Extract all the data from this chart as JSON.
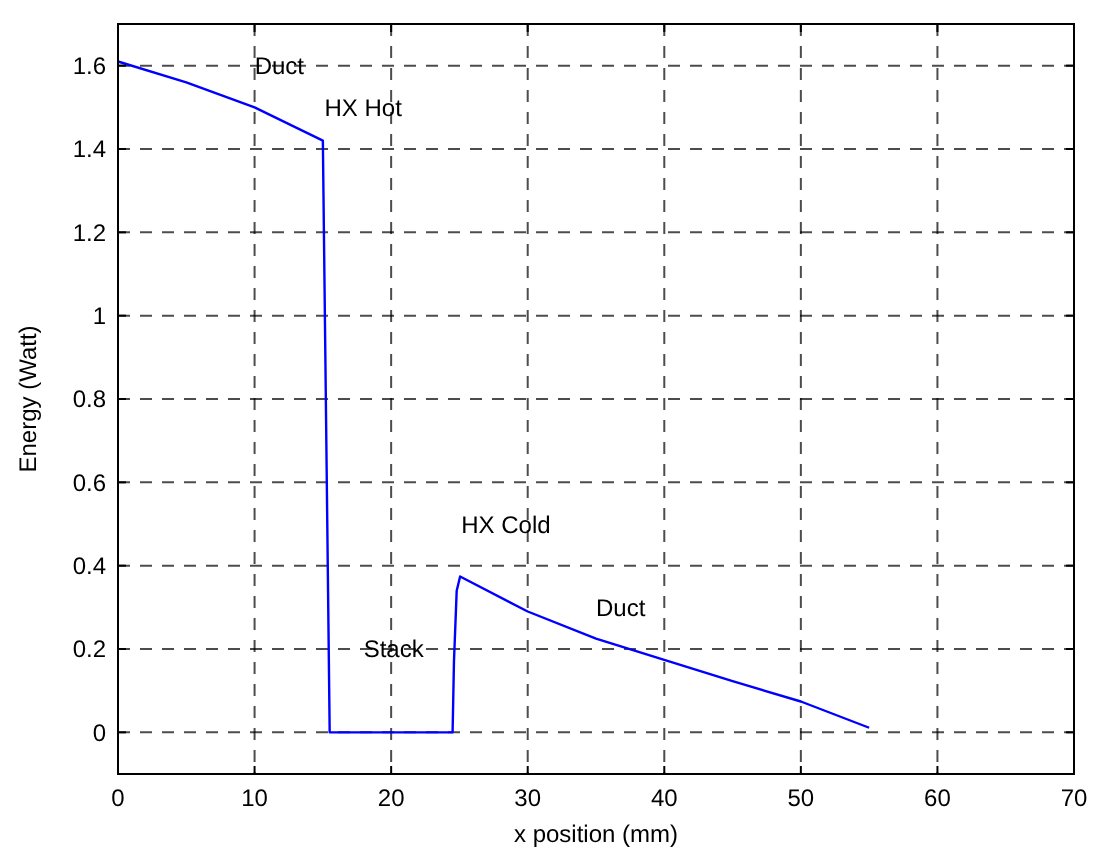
{
  "chart_data": {
    "type": "line",
    "xlabel": "x position (mm)",
    "ylabel": "Energy (Watt)",
    "x": [
      0,
      5,
      10,
      15,
      15.5,
      24.5,
      24.6,
      24.8,
      25.05,
      30,
      35,
      40,
      45,
      50,
      55
    ],
    "series": [
      {
        "color": "#0000ff",
        "values": [
          1.61,
          1.56,
          1.5,
          1.42,
          0,
          0,
          0.17,
          0.34,
          0.374,
          0.29,
          0.225,
          0.174,
          0.123,
          0.074,
          0.011
        ]
      }
    ],
    "xlim": [
      0,
      70
    ],
    "xticks": [
      0,
      10,
      20,
      30,
      40,
      50,
      60,
      70
    ],
    "ylim": [
      -0.1,
      1.7
    ],
    "yticks": [
      0,
      0.2,
      0.4,
      0.6,
      0.8,
      1,
      1.2,
      1.4,
      1.6
    ],
    "grid": true,
    "line_style": "solid",
    "annotations": [
      "Duct",
      "HX Hot",
      "HX Cold",
      "Duct",
      "Stack"
    ]
  }
}
